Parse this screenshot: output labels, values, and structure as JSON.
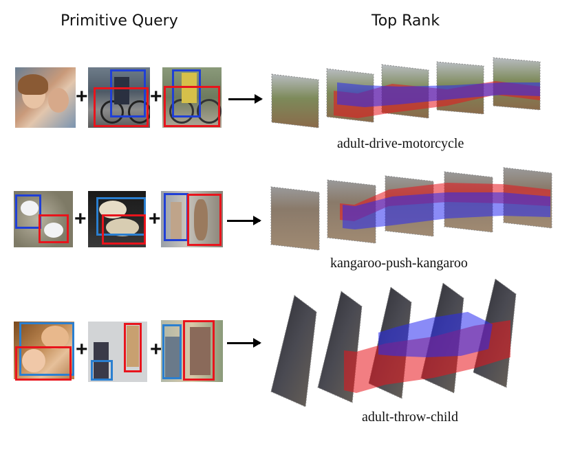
{
  "headers": {
    "left": "Primitive Query",
    "right": "Top Rank"
  },
  "rows": [
    {
      "caption": "adult-drive-motorcycle"
    },
    {
      "caption": "kangaroo-push-kangaroo"
    },
    {
      "caption": "adult-throw-child"
    }
  ],
  "plus_sign": "+",
  "colors": {
    "subject_box": "#1f3fd6",
    "object_box": "#e8141c",
    "alt_box": "#2a7fd0"
  }
}
